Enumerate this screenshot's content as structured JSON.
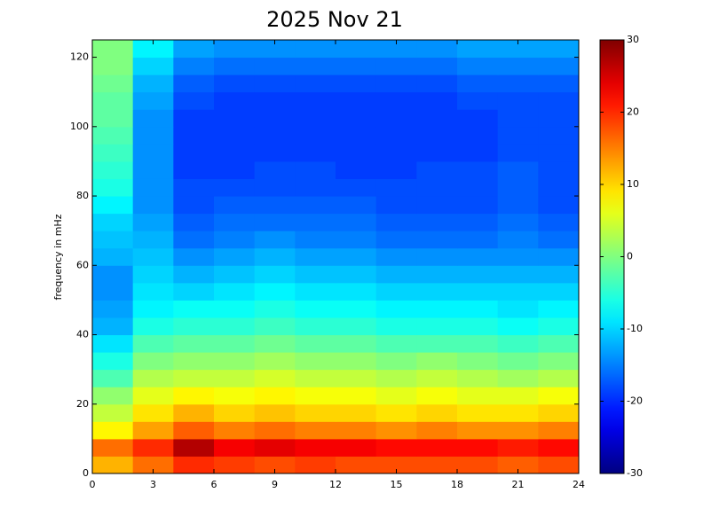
{
  "chart_data": {
    "type": "heatmap",
    "title": "2025 Nov 21",
    "ylabel": "frequency in mHz",
    "colormap": "jet",
    "clim": [
      -30,
      30
    ],
    "colorbar_ticks": [
      -30,
      -20,
      -10,
      0,
      10,
      20,
      30
    ],
    "xlim": [
      0,
      24
    ],
    "xticks": [
      0,
      3,
      6,
      9,
      12,
      15,
      18,
      21,
      24
    ],
    "ylim": [
      0,
      125
    ],
    "yticks": [
      0,
      20,
      40,
      60,
      80,
      100,
      120
    ],
    "x_bins": [
      0,
      2,
      4,
      6,
      8,
      10,
      12,
      14,
      16,
      18,
      20,
      22,
      24
    ],
    "y_bins": [
      0,
      5,
      10,
      15,
      20,
      25,
      30,
      35,
      40,
      45,
      50,
      55,
      60,
      65,
      70,
      75,
      80,
      85,
      90,
      95,
      100,
      105,
      110,
      115,
      120,
      125
    ],
    "z": [
      [
        12,
        16,
        20,
        19,
        18,
        19,
        18,
        18,
        18,
        18,
        17,
        18
      ],
      [
        16,
        20,
        27,
        23,
        24,
        23,
        23,
        22,
        22,
        22,
        21,
        22
      ],
      [
        8,
        13,
        17,
        15,
        16,
        15,
        15,
        14,
        15,
        14,
        14,
        15
      ],
      [
        4,
        9,
        12,
        10,
        11,
        10,
        10,
        9,
        10,
        9,
        9,
        10
      ],
      [
        1,
        6,
        8,
        7,
        8,
        7,
        7,
        6,
        7,
        6,
        6,
        7
      ],
      [
        -3,
        3,
        4,
        4,
        5,
        4,
        4,
        3,
        4,
        3,
        2,
        3
      ],
      [
        -6,
        0,
        1,
        1,
        2,
        1,
        1,
        0,
        1,
        0,
        -1,
        0
      ],
      [
        -9,
        -3,
        -2,
        -2,
        -1,
        -2,
        -2,
        -3,
        -3,
        -3,
        -4,
        -3
      ],
      [
        -12,
        -6,
        -5,
        -5,
        -4,
        -5,
        -5,
        -6,
        -6,
        -6,
        -7,
        -6
      ],
      [
        -13,
        -8,
        -7,
        -7,
        -6,
        -7,
        -7,
        -8,
        -8,
        -8,
        -9,
        -8
      ],
      [
        -14,
        -9,
        -10,
        -9,
        -8,
        -9,
        -9,
        -10,
        -10,
        -10,
        -10,
        -10
      ],
      [
        -14,
        -10,
        -12,
        -11,
        -10,
        -11,
        -11,
        -12,
        -12,
        -12,
        -12,
        -12
      ],
      [
        -12,
        -11,
        -14,
        -13,
        -12,
        -13,
        -13,
        -14,
        -14,
        -14,
        -14,
        -14
      ],
      [
        -11,
        -12,
        -16,
        -15,
        -14,
        -15,
        -15,
        -16,
        -16,
        -16,
        -15,
        -16
      ],
      [
        -10,
        -13,
        -17,
        -16,
        -16,
        -16,
        -16,
        -17,
        -17,
        -17,
        -16,
        -17
      ],
      [
        -8,
        -14,
        -18,
        -17,
        -17,
        -17,
        -17,
        -18,
        -18,
        -18,
        -17,
        -18
      ],
      [
        -6,
        -14,
        -18,
        -18,
        -18,
        -18,
        -18,
        -18,
        -18,
        -18,
        -17,
        -18
      ],
      [
        -5,
        -14,
        -19,
        -19,
        -18,
        -18,
        -19,
        -19,
        -18,
        -18,
        -17,
        -18
      ],
      [
        -4,
        -14,
        -19,
        -19,
        -19,
        -19,
        -19,
        -19,
        -19,
        -19,
        -18,
        -18
      ],
      [
        -3,
        -14,
        -19,
        -19,
        -19,
        -19,
        -19,
        -19,
        -19,
        -19,
        -18,
        -18
      ],
      [
        -2,
        -14,
        -19,
        -19,
        -19,
        -19,
        -19,
        -19,
        -19,
        -19,
        -18,
        -18
      ],
      [
        -2,
        -13,
        -18,
        -19,
        -19,
        -19,
        -19,
        -19,
        -19,
        -18,
        -18,
        -18
      ],
      [
        -1,
        -12,
        -17,
        -18,
        -18,
        -18,
        -18,
        -18,
        -18,
        -17,
        -17,
        -17
      ],
      [
        0,
        -10,
        -15,
        -16,
        -16,
        -16,
        -16,
        -16,
        -16,
        -15,
        -15,
        -15
      ],
      [
        0,
        -8,
        -13,
        -14,
        -14,
        -14,
        -14,
        -14,
        -14,
        -13,
        -13,
        -13
      ]
    ]
  }
}
